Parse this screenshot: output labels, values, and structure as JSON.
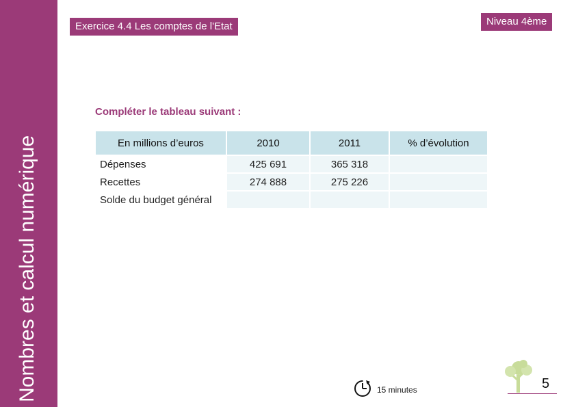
{
  "sidebar": {
    "title": "Nombres et calcul numérique",
    "color": "#9b3a78"
  },
  "header": {
    "exercise_title": "Exercice 4.4 Les comptes de l'Etat",
    "level": "Niveau 4ème"
  },
  "instruction": "Compléter le tableau suivant :",
  "table": {
    "headers": [
      "En millions d’euros",
      "2010",
      "2011",
      "% d’évolution"
    ],
    "rows": [
      {
        "label": "Dépenses",
        "v2010": "425 691",
        "v2011": "365 318",
        "evolution": ""
      },
      {
        "label": "Recettes",
        "v2010": "274 888",
        "v2011": "275 226",
        "evolution": ""
      },
      {
        "label": "Solde du budget général",
        "v2010": "",
        "v2011": "",
        "evolution": ""
      }
    ],
    "header_color": "#c9e3ea",
    "cell_color": "#eef6f8"
  },
  "footer": {
    "timer_icon": "clock-icon",
    "duration": "15 minutes",
    "logo_icon": "tree-icon",
    "page_number": "5"
  }
}
